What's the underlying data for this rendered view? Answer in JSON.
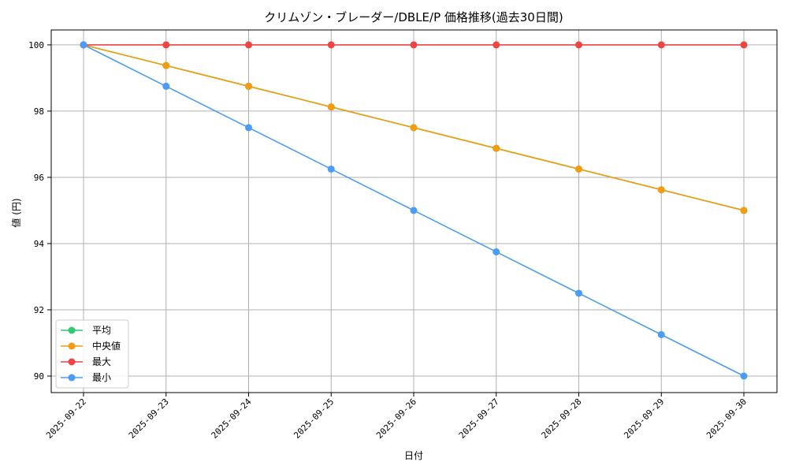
{
  "chart_data": {
    "type": "line",
    "title": "クリムゾン・ブレーダー/DBLE/P 価格推移(過去30日間)",
    "xlabel": "日付",
    "ylabel": "値 (円)",
    "categories": [
      "2025-09-22",
      "2025-09-23",
      "2025-09-24",
      "2025-09-25",
      "2025-09-26",
      "2025-09-27",
      "2025-09-28",
      "2025-09-29",
      "2025-09-30"
    ],
    "yticks": [
      90,
      92,
      94,
      96,
      98,
      100
    ],
    "ylim": [
      89.5,
      100.45
    ],
    "grid": true,
    "legend_position": "lower-left",
    "series": [
      {
        "name": "平均",
        "color": "#2ecc71",
        "values": [
          100,
          99.375,
          98.75,
          98.125,
          97.5,
          96.875,
          96.25,
          95.625,
          95.0
        ]
      },
      {
        "name": "中央値",
        "color": "#f39c12",
        "values": [
          100,
          99.375,
          98.75,
          98.125,
          97.5,
          96.875,
          96.25,
          95.625,
          95.0
        ]
      },
      {
        "name": "最大",
        "color": "#ef4444",
        "values": [
          100,
          100,
          100,
          100,
          100,
          100,
          100,
          100,
          100
        ]
      },
      {
        "name": "最小",
        "color": "#4a9cf5",
        "values": [
          100,
          98.75,
          97.5,
          96.25,
          95.0,
          93.75,
          92.5,
          91.25,
          90.0
        ]
      }
    ]
  }
}
